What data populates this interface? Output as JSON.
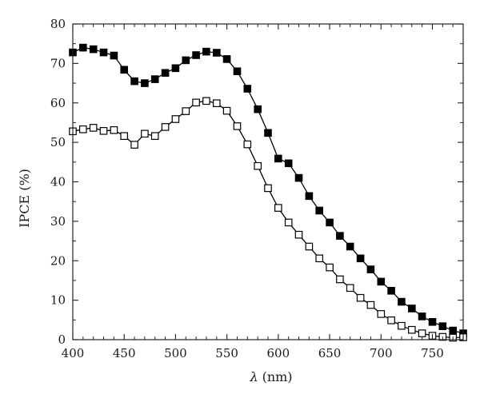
{
  "chart_data": {
    "type": "line",
    "title": "",
    "xlabel_symbol": "λ",
    "xlabel_unit": "(nm)",
    "ylabel": "IPCE (%)",
    "xlim": [
      400,
      780
    ],
    "ylim": [
      0,
      80
    ],
    "xticks": [
      400,
      450,
      500,
      550,
      600,
      650,
      700,
      750
    ],
    "yticks": [
      0,
      10,
      20,
      30,
      40,
      50,
      60,
      70,
      80
    ],
    "grid": false,
    "legend": "none",
    "x": [
      400,
      410,
      420,
      430,
      440,
      450,
      460,
      470,
      480,
      490,
      500,
      510,
      520,
      530,
      540,
      550,
      560,
      570,
      580,
      590,
      600,
      610,
      620,
      630,
      640,
      650,
      660,
      670,
      680,
      690,
      700,
      710,
      720,
      730,
      740,
      750,
      760,
      770,
      780
    ],
    "series": [
      {
        "marker": "filled-square",
        "color": "#000000",
        "values": [
          72.8,
          74.0,
          73.6,
          72.8,
          72.0,
          68.4,
          65.5,
          65.0,
          66.0,
          67.6,
          68.8,
          70.8,
          72.1,
          73.0,
          72.7,
          71.1,
          68.0,
          63.6,
          58.4,
          52.4,
          45.9,
          44.7,
          41.0,
          36.4,
          32.7,
          29.7,
          26.3,
          23.6,
          20.6,
          17.8,
          14.7,
          12.4,
          9.6,
          7.9,
          5.9,
          4.5,
          3.4,
          2.3,
          1.6
        ]
      },
      {
        "marker": "open-square",
        "color": "#000000",
        "values": [
          52.8,
          53.3,
          53.7,
          52.9,
          53.1,
          51.6,
          49.4,
          52.2,
          51.6,
          53.9,
          55.9,
          57.9,
          60.1,
          60.5,
          59.9,
          58.0,
          54.1,
          49.5,
          44.0,
          38.4,
          33.4,
          29.7,
          26.6,
          23.6,
          20.6,
          18.3,
          15.3,
          13.1,
          10.6,
          8.8,
          6.5,
          4.9,
          3.5,
          2.5,
          1.6,
          1.0,
          0.7,
          0.5,
          0.6
        ]
      }
    ]
  }
}
